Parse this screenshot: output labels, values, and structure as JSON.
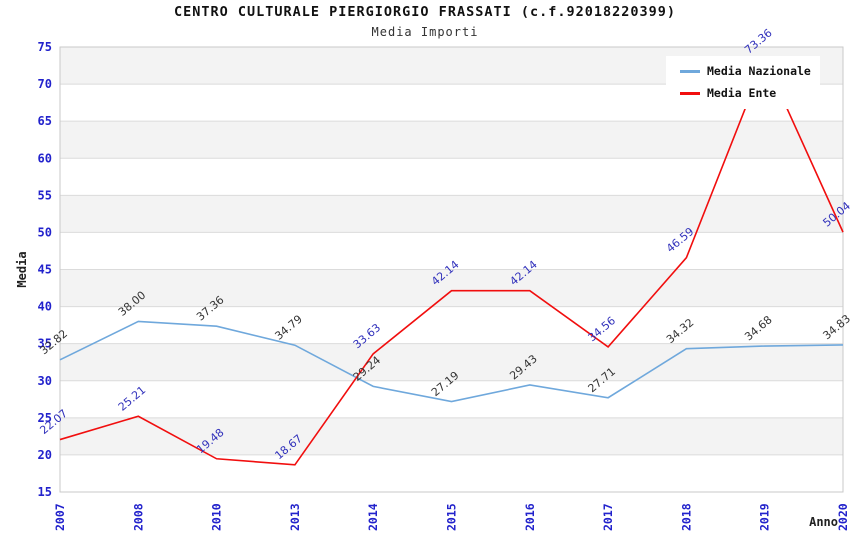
{
  "header": {
    "title": "CENTRO CULTURALE PIERGIORGIO FRASSATI (c.f.92018220399)",
    "subtitle": "Media Importi"
  },
  "chart_data": {
    "type": "line",
    "title": "CENTRO CULTURALE PIERGIORGIO FRASSATI (c.f.92018220399)",
    "subtitle": "Media Importi",
    "xlabel": "Anno",
    "ylabel": "Media",
    "ylim": [
      15,
      75
    ],
    "ytick_step": 5,
    "yticks": [
      15,
      20,
      25,
      30,
      35,
      40,
      45,
      50,
      55,
      60,
      65,
      70,
      75
    ],
    "grid": true,
    "legend_position": "top-right",
    "categories": [
      "2007",
      "2008",
      "2010",
      "2013",
      "2014",
      "2015",
      "2016",
      "2017",
      "2018",
      "2019",
      "2020"
    ],
    "series": [
      {
        "name": "Media Nazionale",
        "color": "#6FA8DC",
        "label_color": "#333333",
        "values": [
          32.82,
          38.0,
          37.36,
          34.79,
          29.24,
          27.19,
          29.43,
          27.71,
          34.32,
          34.68,
          34.83
        ]
      },
      {
        "name": "Media Ente",
        "color": "#F10E0E",
        "label_color": "#3030BB",
        "values": [
          22.07,
          25.21,
          19.48,
          18.67,
          33.63,
          42.14,
          42.14,
          34.56,
          46.59,
          73.36,
          50.04
        ]
      }
    ],
    "colors": {
      "band": "#F3F3F3",
      "grid": "#DBDBDB",
      "border": "#C9C9C9",
      "tick": "#2222CC",
      "axis_title": "#222222",
      "background": "#FFFFFF"
    }
  }
}
